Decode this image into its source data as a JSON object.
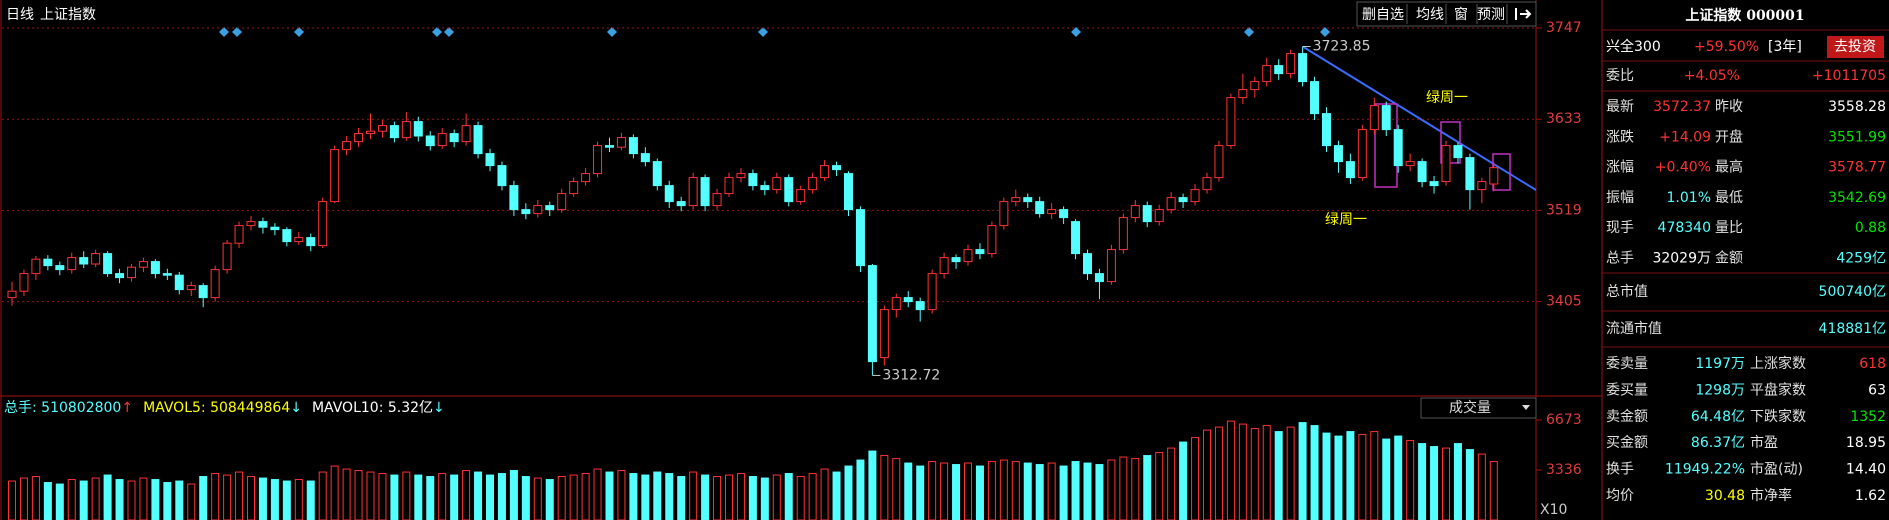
{
  "toolbar": {
    "period": "日线",
    "name": "上证指数",
    "buttons": [
      "删自选",
      "均线",
      "窗",
      "预测"
    ]
  },
  "chart_data": [
    {
      "type": "candlestick",
      "ohlc": [
        [
          3410,
          3430,
          3400,
          3418
        ],
        [
          3418,
          3445,
          3412,
          3440
        ],
        [
          3440,
          3462,
          3432,
          3458
        ],
        [
          3458,
          3463,
          3444,
          3450
        ],
        [
          3450,
          3455,
          3438,
          3445
        ],
        [
          3445,
          3466,
          3440,
          3460
        ],
        [
          3460,
          3468,
          3447,
          3452
        ],
        [
          3452,
          3470,
          3448,
          3465
        ],
        [
          3465,
          3468,
          3436,
          3440
        ],
        [
          3440,
          3446,
          3428,
          3435
        ],
        [
          3435,
          3452,
          3430,
          3448
        ],
        [
          3448,
          3460,
          3442,
          3455
        ],
        [
          3455,
          3458,
          3434,
          3440
        ],
        [
          3440,
          3446,
          3432,
          3438
        ],
        [
          3438,
          3442,
          3414,
          3420
        ],
        [
          3420,
          3430,
          3412,
          3425
        ],
        [
          3425,
          3428,
          3398,
          3410
        ],
        [
          3410,
          3450,
          3405,
          3445
        ],
        [
          3445,
          3482,
          3440,
          3478
        ],
        [
          3478,
          3505,
          3472,
          3500
        ],
        [
          3500,
          3512,
          3494,
          3505
        ],
        [
          3505,
          3510,
          3490,
          3498
        ],
        [
          3498,
          3503,
          3488,
          3495
        ],
        [
          3495,
          3498,
          3474,
          3480
        ],
        [
          3480,
          3492,
          3476,
          3485
        ],
        [
          3485,
          3490,
          3468,
          3475
        ],
        [
          3475,
          3535,
          3472,
          3530
        ],
        [
          3530,
          3600,
          3528,
          3595
        ],
        [
          3595,
          3612,
          3588,
          3605
        ],
        [
          3605,
          3622,
          3598,
          3615
        ],
        [
          3615,
          3640,
          3608,
          3618
        ],
        [
          3618,
          3632,
          3610,
          3625
        ],
        [
          3625,
          3630,
          3604,
          3610
        ],
        [
          3610,
          3642,
          3606,
          3630
        ],
        [
          3630,
          3636,
          3605,
          3612
        ],
        [
          3612,
          3618,
          3594,
          3600
        ],
        [
          3600,
          3622,
          3596,
          3615
        ],
        [
          3615,
          3620,
          3598,
          3605
        ],
        [
          3605,
          3640,
          3600,
          3625
        ],
        [
          3625,
          3630,
          3584,
          3590
        ],
        [
          3590,
          3596,
          3568,
          3575
        ],
        [
          3575,
          3580,
          3544,
          3550
        ],
        [
          3550,
          3556,
          3512,
          3520
        ],
        [
          3520,
          3528,
          3508,
          3515
        ],
        [
          3515,
          3532,
          3510,
          3525
        ],
        [
          3525,
          3530,
          3512,
          3520
        ],
        [
          3520,
          3546,
          3516,
          3540
        ],
        [
          3540,
          3560,
          3536,
          3555
        ],
        [
          3555,
          3572,
          3550,
          3565
        ],
        [
          3565,
          3605,
          3560,
          3600
        ],
        [
          3600,
          3610,
          3592,
          3598
        ],
        [
          3598,
          3616,
          3594,
          3610
        ],
        [
          3610,
          3614,
          3584,
          3590
        ],
        [
          3590,
          3598,
          3574,
          3580
        ],
        [
          3580,
          3584,
          3544,
          3550
        ],
        [
          3550,
          3556,
          3522,
          3530
        ],
        [
          3530,
          3536,
          3518,
          3525
        ],
        [
          3525,
          3566,
          3520,
          3560
        ],
        [
          3560,
          3564,
          3518,
          3525
        ],
        [
          3525,
          3546,
          3520,
          3540
        ],
        [
          3540,
          3566,
          3536,
          3560
        ],
        [
          3560,
          3572,
          3554,
          3565
        ],
        [
          3565,
          3570,
          3544,
          3550
        ],
        [
          3550,
          3556,
          3538,
          3545
        ],
        [
          3545,
          3566,
          3540,
          3560
        ],
        [
          3560,
          3564,
          3524,
          3530
        ],
        [
          3530,
          3550,
          3526,
          3545
        ],
        [
          3545,
          3566,
          3540,
          3560
        ],
        [
          3560,
          3582,
          3556,
          3575
        ],
        [
          3575,
          3580,
          3562,
          3570
        ],
        [
          3565,
          3568,
          3512,
          3520
        ],
        [
          3520,
          3524,
          3442,
          3450
        ],
        [
          3450,
          3452,
          3312.72,
          3330
        ],
        [
          3335,
          3400,
          3325,
          3395
        ],
        [
          3395,
          3415,
          3385,
          3410
        ],
        [
          3410,
          3418,
          3398,
          3405
        ],
        [
          3405,
          3410,
          3380,
          3395
        ],
        [
          3395,
          3445,
          3390,
          3440
        ],
        [
          3440,
          3466,
          3434,
          3460
        ],
        [
          3460,
          3464,
          3446,
          3455
        ],
        [
          3455,
          3476,
          3450,
          3470
        ],
        [
          3470,
          3478,
          3458,
          3465
        ],
        [
          3465,
          3505,
          3460,
          3500
        ],
        [
          3500,
          3535,
          3495,
          3530
        ],
        [
          3530,
          3545,
          3524,
          3535
        ],
        [
          3535,
          3540,
          3522,
          3530
        ],
        [
          3530,
          3536,
          3510,
          3515
        ],
        [
          3515,
          3528,
          3508,
          3520
        ],
        [
          3520,
          3524,
          3502,
          3510
        ],
        [
          3505,
          3508,
          3458,
          3465
        ],
        [
          3465,
          3470,
          3432,
          3440
        ],
        [
          3440,
          3446,
          3408,
          3430
        ],
        [
          3430,
          3476,
          3426,
          3470
        ],
        [
          3470,
          3515,
          3465,
          3510
        ],
        [
          3510,
          3532,
          3504,
          3525
        ],
        [
          3525,
          3530,
          3498,
          3505
        ],
        [
          3505,
          3526,
          3500,
          3520
        ],
        [
          3520,
          3542,
          3515,
          3535
        ],
        [
          3535,
          3540,
          3522,
          3530
        ],
        [
          3530,
          3552,
          3525,
          3545
        ],
        [
          3545,
          3566,
          3540,
          3560
        ],
        [
          3560,
          3606,
          3555,
          3600
        ],
        [
          3600,
          3665,
          3596,
          3660
        ],
        [
          3660,
          3690,
          3652,
          3670
        ],
        [
          3670,
          3686,
          3660,
          3680
        ],
        [
          3680,
          3710,
          3674,
          3700
        ],
        [
          3700,
          3708,
          3682,
          3690
        ],
        [
          3690,
          3720,
          3684,
          3715
        ],
        [
          3715,
          3723.85,
          3674,
          3680
        ],
        [
          3680,
          3686,
          3632,
          3640
        ],
        [
          3640,
          3648,
          3592,
          3600
        ],
        [
          3600,
          3606,
          3566,
          3580
        ],
        [
          3580,
          3590,
          3552,
          3560
        ],
        [
          3560,
          3626,
          3556,
          3620
        ],
        [
          3620,
          3660,
          3614,
          3650
        ],
        [
          3650,
          3655,
          3612,
          3620
        ],
        [
          3620,
          3626,
          3566,
          3575
        ],
        [
          3575,
          3590,
          3568,
          3580
        ],
        [
          3580,
          3584,
          3548,
          3555
        ],
        [
          3555,
          3562,
          3540,
          3550
        ],
        [
          3555,
          3606,
          3550,
          3600
        ],
        [
          3600,
          3604,
          3578,
          3585
        ],
        [
          3585,
          3590,
          3520,
          3545
        ],
        [
          3545,
          3560,
          3528,
          3555
        ],
        [
          3551.99,
          3578.77,
          3542.69,
          3572.37
        ]
      ],
      "ylim": [
        3292,
        3772
      ],
      "yticks": [
        3405,
        3519,
        3633,
        3747
      ],
      "grid": true,
      "up_color": "#ff3232",
      "down_color": "#54ffff",
      "annotations": [
        "绿周一",
        "绿周一"
      ]
    },
    {
      "type": "bar",
      "title": "成交量",
      "values": [
        2600,
        2800,
        2900,
        2500,
        2400,
        2700,
        2600,
        2800,
        3000,
        2700,
        2600,
        2800,
        2700,
        2500,
        2600,
        2400,
        2900,
        3100,
        3000,
        3200,
        2900,
        2800,
        2700,
        2600,
        2700,
        2600,
        3200,
        3600,
        3400,
        3300,
        3200,
        3100,
        3000,
        3200,
        3000,
        2900,
        3100,
        3000,
        3300,
        3200,
        3000,
        3100,
        3300,
        2900,
        2800,
        2700,
        2900,
        3000,
        3100,
        3400,
        3200,
        3300,
        3100,
        3000,
        3200,
        3100,
        2900,
        3200,
        3000,
        2900,
        3000,
        3100,
        2900,
        2800,
        3000,
        3100,
        2900,
        3100,
        3400,
        3200,
        3600,
        4000,
        4600,
        4300,
        4100,
        3800,
        3600,
        3900,
        3800,
        3700,
        3800,
        3600,
        3900,
        4000,
        3900,
        3800,
        3700,
        3800,
        3600,
        3900,
        3800,
        3700,
        4000,
        4200,
        4100,
        4300,
        4500,
        4800,
        5200,
        5500,
        6000,
        6200,
        6600,
        6400,
        6100,
        6300,
        5900,
        6200,
        6500,
        6300,
        5800,
        5600,
        5900,
        5700,
        5900,
        5400,
        5600,
        5300,
        5100,
        4900,
        4800,
        5100,
        4700,
        4400,
        3900
      ],
      "ylim": [
        0,
        7207
      ],
      "yticks": [
        3336,
        6673
      ],
      "scale_label": "X10",
      "legend": [
        {
          "text": "总手: 510802800",
          "color": "#54ffff",
          "arrow": "↑",
          "arrow_color": "#ff3232"
        },
        {
          "text": "MAVOL5: 508449864",
          "color": "#ffff00",
          "arrow": "↓",
          "arrow_color": "#54ffff"
        },
        {
          "text": "MAVOL10: 5.32亿",
          "color": "#ffffff",
          "arrow": "↓",
          "arrow_color": "#54ffff"
        }
      ]
    }
  ],
  "panel": {
    "title": "上证指数 000001",
    "promo": {
      "name": "兴全300",
      "rate": "+59.50%",
      "term": "[3年]",
      "button": "去投资"
    },
    "ratio": {
      "label": "委比",
      "value": "+4.05%",
      "value2": "+1011705"
    },
    "quote": [
      [
        {
          "label": "最新",
          "value": "3572.37",
          "color": "#ff3232"
        },
        {
          "label": "昨收",
          "value": "3558.28",
          "color": "#ffffff"
        }
      ],
      [
        {
          "label": "涨跌",
          "value": "+14.09",
          "color": "#ff3232"
        },
        {
          "label": "开盘",
          "value": "3551.99",
          "color": "#00e600"
        }
      ],
      [
        {
          "label": "涨幅",
          "value": "+0.40%",
          "color": "#ff3232"
        },
        {
          "label": "最高",
          "value": "3578.77",
          "color": "#ff3232"
        }
      ],
      [
        {
          "label": "振幅",
          "value": "1.01%",
          "color": "#54ffff"
        },
        {
          "label": "最低",
          "value": "3542.69",
          "color": "#00e600"
        }
      ],
      [
        {
          "label": "现手",
          "value": "478340",
          "color": "#54ffff"
        },
        {
          "label": "量比",
          "value": "0.88",
          "color": "#00e600"
        }
      ],
      [
        {
          "label": "总手",
          "value": "32029万",
          "color": "#ffffff"
        },
        {
          "label": "金额",
          "value": "4259亿",
          "color": "#54ffff"
        }
      ]
    ],
    "market": [
      {
        "label": "总市值",
        "value": "500740亿",
        "color": "#54ffff"
      },
      {
        "label": "流通市值",
        "value": "418881亿",
        "color": "#54ffff"
      }
    ],
    "orders": [
      [
        {
          "label": "委卖量",
          "value": "1197万",
          "color": "#54ffff"
        },
        {
          "label": "上涨家数",
          "value": "618",
          "color": "#ff3232"
        }
      ],
      [
        {
          "label": "委买量",
          "value": "1298万",
          "color": "#54ffff"
        },
        {
          "label": "平盘家数",
          "value": "63",
          "color": "#ffffff"
        }
      ],
      [
        {
          "label": "卖金额",
          "value": "64.48亿",
          "color": "#54ffff"
        },
        {
          "label": "下跌家数",
          "value": "1352",
          "color": "#00e600"
        }
      ],
      [
        {
          "label": "买金额",
          "value": "86.37亿",
          "color": "#54ffff"
        },
        {
          "label": "市盈",
          "value": "18.95",
          "color": "#ffffff"
        }
      ],
      [
        {
          "label": "换手",
          "value": "11949.22%",
          "color": "#54ffff"
        },
        {
          "label": "市盈(动)",
          "value": "14.40",
          "color": "#ffffff"
        }
      ],
      [
        {
          "label": "均价",
          "value": "30.48",
          "color": "#ffff00"
        },
        {
          "label": "市净率",
          "value": "1.62",
          "color": "#ffffff"
        }
      ]
    ]
  }
}
